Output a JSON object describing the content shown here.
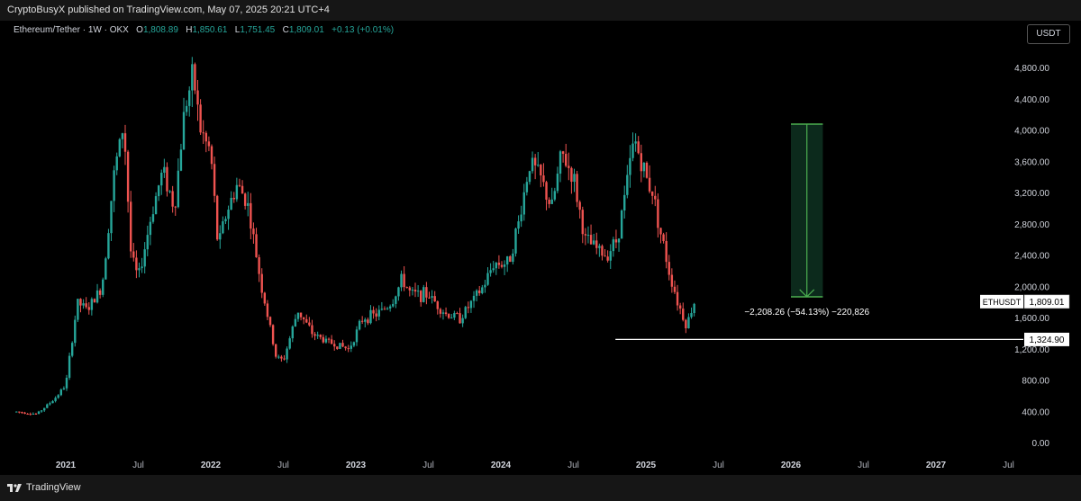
{
  "header": {
    "published": "CryptoBusyX published on TradingView.com, May 07, 2025 20:21 UTC+4"
  },
  "legend": {
    "symbol": "Ethereum/Tether · 1W · OKX",
    "open_label": "O",
    "open": "1,808.89",
    "high_label": "H",
    "high": "1,850.61",
    "low_label": "L",
    "low": "1,751.45",
    "close_label": "C",
    "close": "1,809.01",
    "change": "+0.13 (+0.01%)"
  },
  "currency_button": "USDT",
  "footer": {
    "brand": "TradingView"
  },
  "colors": {
    "up": "#26a69a",
    "down": "#ef5350",
    "measure": "#4caf50",
    "line": "#ffffff"
  },
  "chart_data": {
    "type": "candlestick",
    "symbol": "ETHUSDT",
    "timeframe": "1W",
    "y_range": [
      0,
      4900
    ],
    "y_ticks": [
      "4,800.00",
      "4,400.00",
      "4,000.00",
      "3,600.00",
      "3,200.00",
      "2,800.00",
      "2,400.00",
      "2,000.00",
      "1,600.00",
      "1,200.00",
      "800.00",
      "400.00",
      "0.00"
    ],
    "y_tick_values": [
      4800,
      4400,
      4000,
      3600,
      3200,
      2800,
      2400,
      2000,
      1600,
      1200,
      800,
      400,
      0
    ],
    "x_ticks": [
      {
        "label": "2021",
        "t": 2021.0,
        "bold": true
      },
      {
        "label": "Jul",
        "t": 2021.5,
        "bold": false
      },
      {
        "label": "2022",
        "t": 2022.0,
        "bold": true
      },
      {
        "label": "Jul",
        "t": 2022.5,
        "bold": false
      },
      {
        "label": "2023",
        "t": 2023.0,
        "bold": true
      },
      {
        "label": "Jul",
        "t": 2023.5,
        "bold": false
      },
      {
        "label": "2024",
        "t": 2024.0,
        "bold": true
      },
      {
        "label": "Jul",
        "t": 2024.5,
        "bold": false
      },
      {
        "label": "2025",
        "t": 2025.0,
        "bold": true
      },
      {
        "label": "Jul",
        "t": 2025.5,
        "bold": false
      },
      {
        "label": "2026",
        "t": 2026.0,
        "bold": true
      },
      {
        "label": "Jul",
        "t": 2026.5,
        "bold": false
      },
      {
        "label": "2027",
        "t": 2027.0,
        "bold": true
      },
      {
        "label": "Jul",
        "t": 2027.5,
        "bold": false
      }
    ],
    "price_path": [
      [
        2020.66,
        400
      ],
      [
        2020.8,
        370
      ],
      [
        2020.92,
        560
      ],
      [
        2021.0,
        740
      ],
      [
        2021.08,
        1800
      ],
      [
        2021.15,
        1700
      ],
      [
        2021.25,
        2000
      ],
      [
        2021.33,
        3400
      ],
      [
        2021.4,
        4100
      ],
      [
        2021.45,
        2400
      ],
      [
        2021.5,
        2100
      ],
      [
        2021.6,
        3000
      ],
      [
        2021.67,
        3500
      ],
      [
        2021.75,
        3000
      ],
      [
        2021.82,
        4300
      ],
      [
        2021.88,
        4700
      ],
      [
        2021.93,
        4000
      ],
      [
        2022.0,
        3700
      ],
      [
        2022.05,
        2500
      ],
      [
        2022.1,
        2900
      ],
      [
        2022.18,
        3300
      ],
      [
        2022.25,
        3100
      ],
      [
        2022.35,
        2000
      ],
      [
        2022.45,
        1100
      ],
      [
        2022.5,
        1050
      ],
      [
        2022.6,
        1700
      ],
      [
        2022.7,
        1400
      ],
      [
        2022.8,
        1300
      ],
      [
        2022.88,
        1250
      ],
      [
        2022.95,
        1200
      ],
      [
        2023.05,
        1600
      ],
      [
        2023.15,
        1650
      ],
      [
        2023.25,
        1800
      ],
      [
        2023.32,
        2100
      ],
      [
        2023.38,
        1900
      ],
      [
        2023.5,
        1900
      ],
      [
        2023.62,
        1650
      ],
      [
        2023.72,
        1600
      ],
      [
        2023.8,
        1800
      ],
      [
        2023.88,
        2000
      ],
      [
        2023.95,
        2300
      ],
      [
        2024.05,
        2300
      ],
      [
        2024.12,
        2800
      ],
      [
        2024.2,
        3600
      ],
      [
        2024.27,
        3400
      ],
      [
        2024.35,
        3000
      ],
      [
        2024.42,
        3700
      ],
      [
        2024.5,
        3400
      ],
      [
        2024.58,
        2600
      ],
      [
        2024.65,
        2500
      ],
      [
        2024.72,
        2400
      ],
      [
        2024.8,
        2600
      ],
      [
        2024.85,
        3100
      ],
      [
        2024.92,
        3900
      ],
      [
        2025.0,
        3400
      ],
      [
        2025.05,
        3200
      ],
      [
        2025.1,
        2700
      ],
      [
        2025.16,
        2200
      ],
      [
        2025.22,
        1800
      ],
      [
        2025.28,
        1500
      ],
      [
        2025.33,
        1790
      ],
      [
        2025.35,
        1809
      ]
    ],
    "horizontal_line": {
      "price": 1324.9,
      "label": "1,324.90",
      "start_t": 2024.79
    },
    "last_price": {
      "symbol": "ETHUSDT",
      "label": "1,809.01",
      "value": 1809.01
    },
    "measure": {
      "from_price": 4080,
      "to_price": 1871,
      "t_start": 2026.0,
      "t_end": 2026.22,
      "label": "−2,208.26 (−54.13%) −220,826"
    }
  }
}
